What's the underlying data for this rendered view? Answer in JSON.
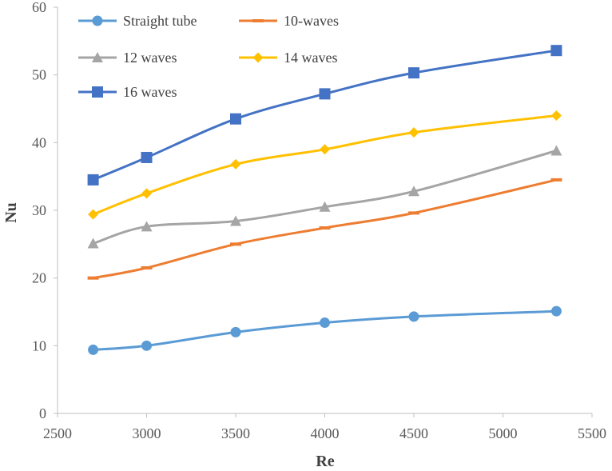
{
  "chart_data": {
    "type": "line",
    "title": "",
    "xlabel": "Re",
    "ylabel": "Nu",
    "xlim": [
      2500,
      5500
    ],
    "ylim": [
      0,
      60
    ],
    "xticks": [
      2500,
      3000,
      3500,
      4000,
      4500,
      5000,
      5500
    ],
    "yticks": [
      0,
      10,
      20,
      30,
      40,
      50,
      60
    ],
    "grid": false,
    "smooth": true,
    "legend_position": "top-left",
    "series": [
      {
        "name": "Straight tube",
        "color": "#5B9BD5",
        "marker": "circle",
        "x": [
          2700,
          3000,
          3500,
          4000,
          4500,
          5300
        ],
        "y": [
          9.4,
          10.0,
          12.0,
          13.4,
          14.3,
          15.1
        ]
      },
      {
        "name": "10-waves",
        "color": "#ED7D31",
        "marker": "dash",
        "x": [
          2700,
          3000,
          3500,
          4000,
          4500,
          5300
        ],
        "y": [
          20.0,
          21.5,
          25.0,
          27.4,
          29.6,
          34.5
        ]
      },
      {
        "name": "12 waves",
        "color": "#A5A5A5",
        "marker": "triangle",
        "x": [
          2700,
          3000,
          3500,
          4000,
          4500,
          5300
        ],
        "y": [
          25.1,
          27.6,
          28.4,
          30.5,
          32.8,
          38.8
        ]
      },
      {
        "name": "14  waves",
        "color": "#FFC000",
        "marker": "diamond",
        "x": [
          2700,
          3000,
          3500,
          4000,
          4500,
          5300
        ],
        "y": [
          29.4,
          32.5,
          36.8,
          39.0,
          41.5,
          44.0
        ]
      },
      {
        "name": "16  waves",
        "color": "#4472C4",
        "marker": "square",
        "x": [
          2700,
          3000,
          3500,
          4000,
          4500,
          5300
        ],
        "y": [
          34.5,
          37.8,
          43.5,
          47.2,
          50.3,
          53.6
        ]
      }
    ]
  }
}
